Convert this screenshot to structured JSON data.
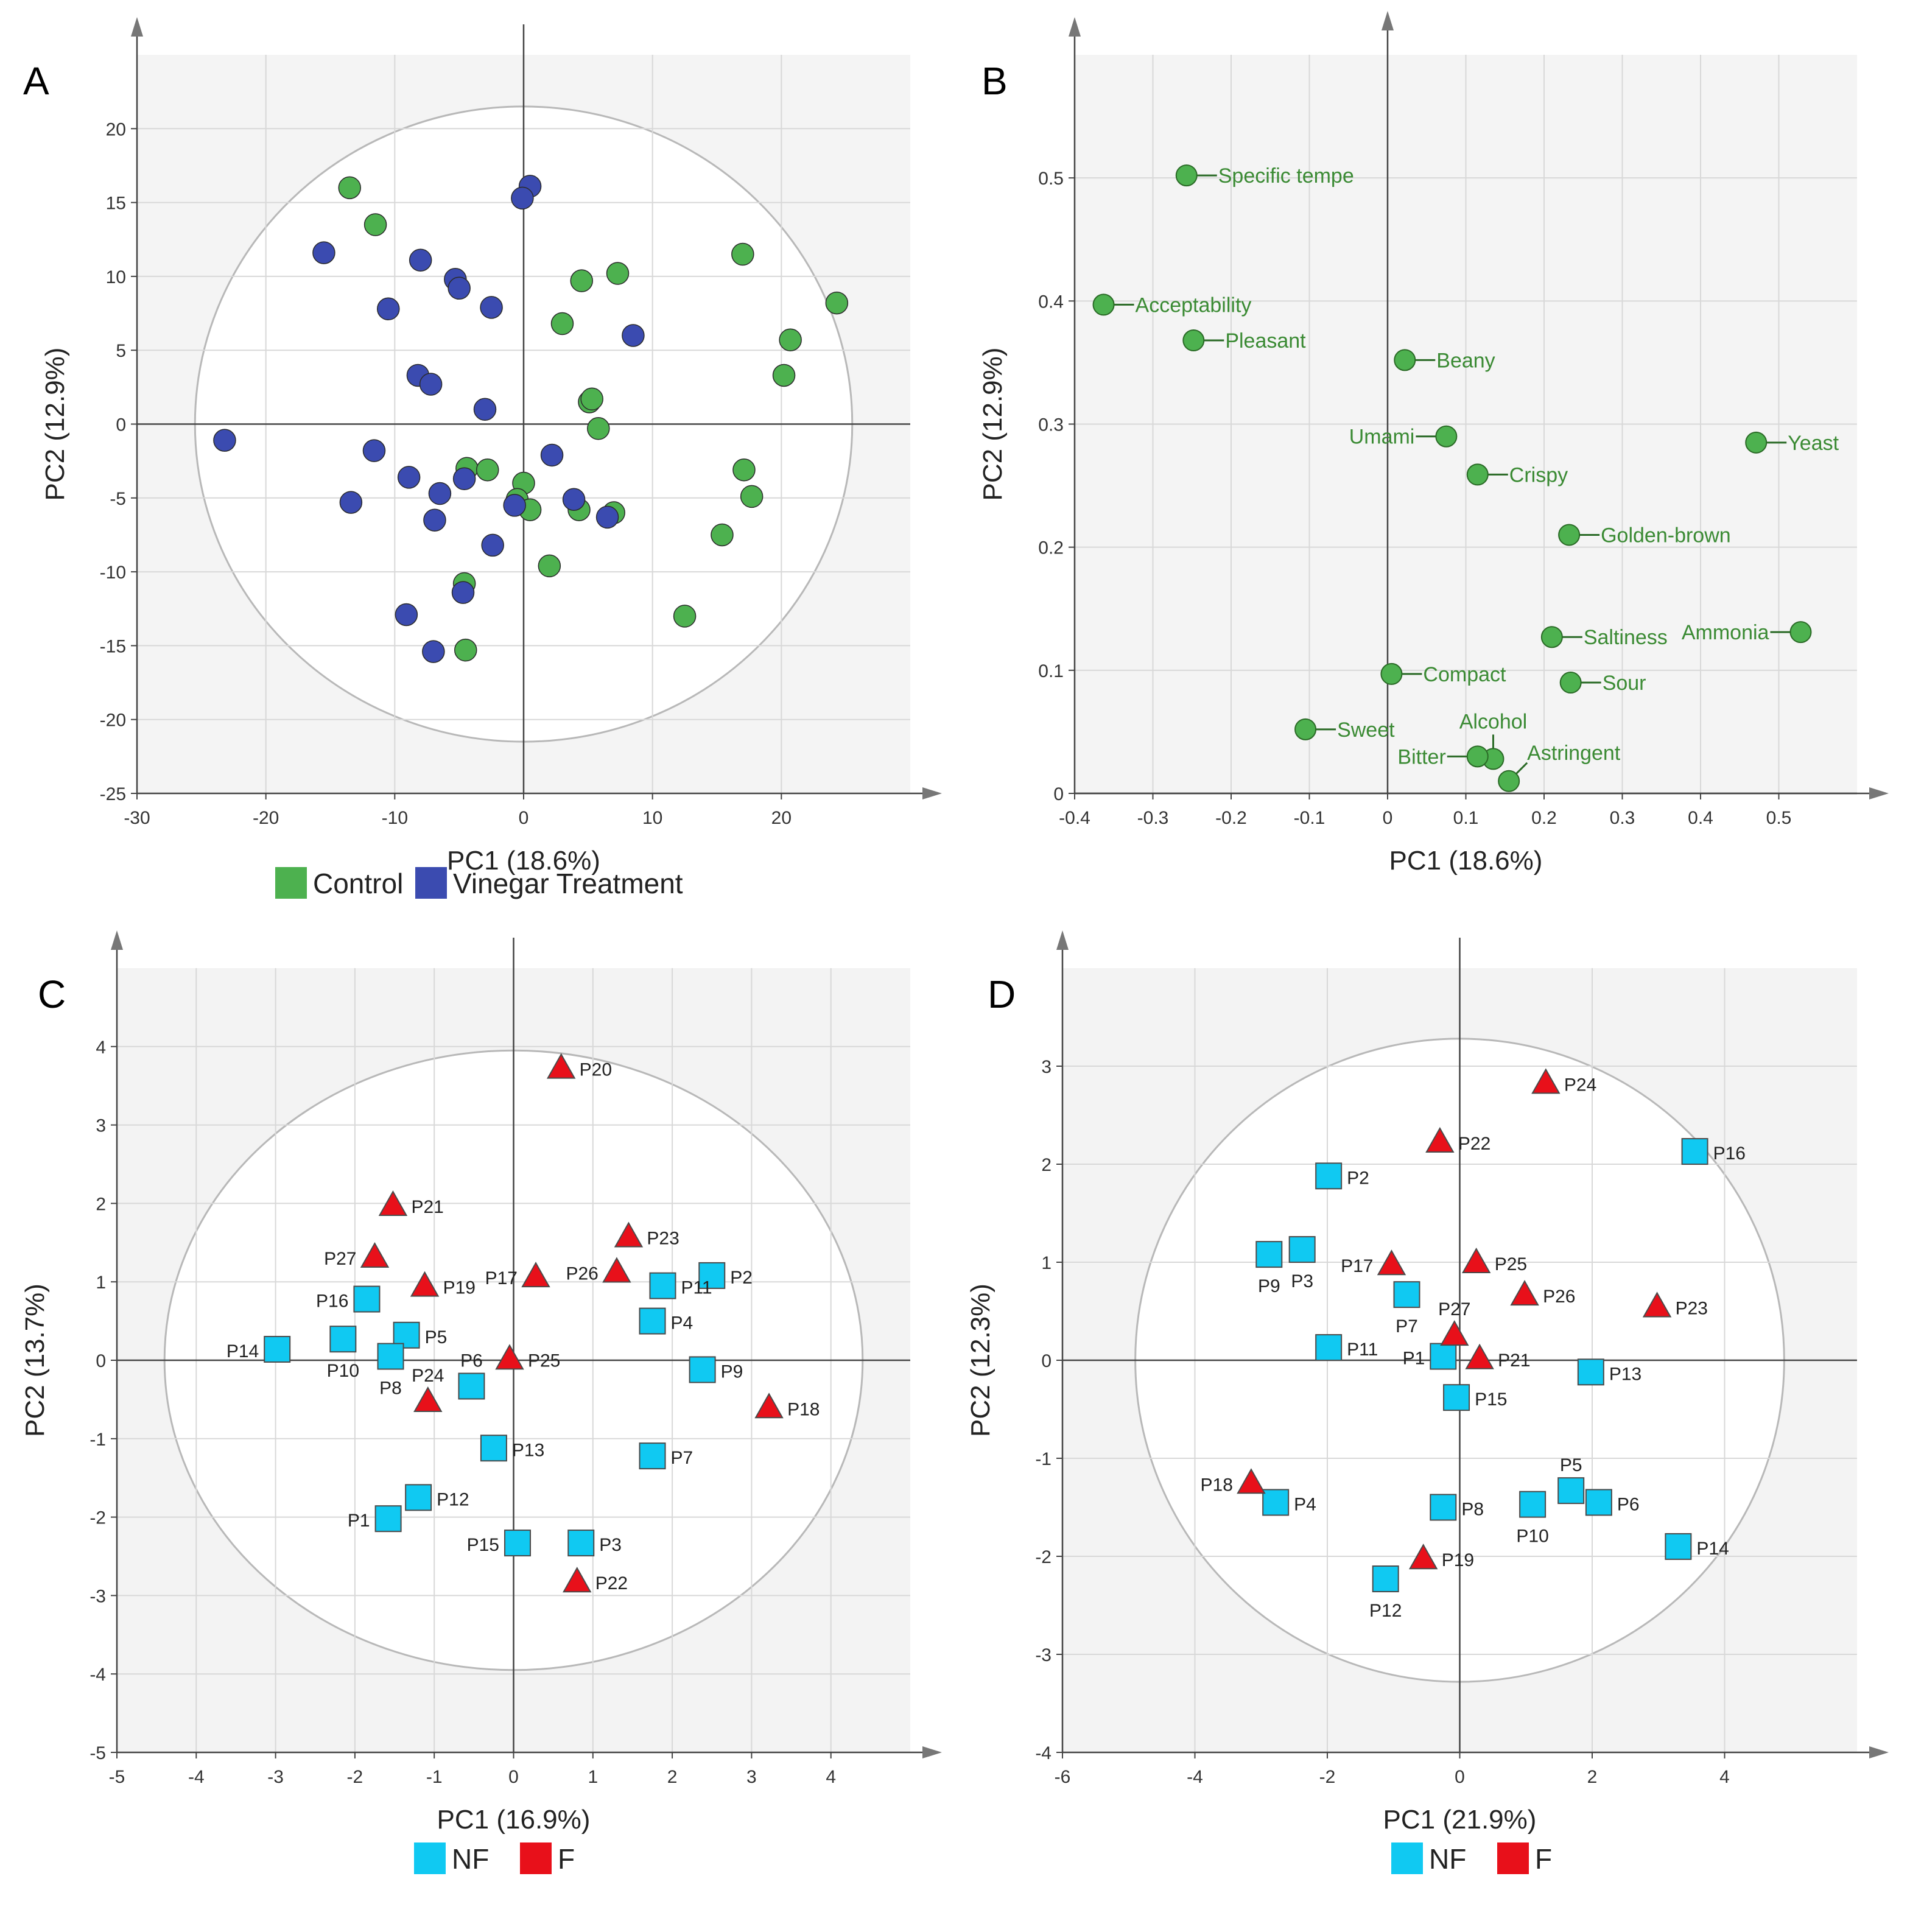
{
  "colors": {
    "control": "#4db14f",
    "vinegar": "#3b4bb0",
    "nf": "#10c9f2",
    "f": "#e8101a",
    "loading": "#4db14f"
  },
  "chart_data": [
    {
      "panel": "A",
      "type": "scatter",
      "xlabel": "PC1 (18.6%)",
      "ylabel": "PC2 (12.9%)",
      "xlim": [
        -30,
        30
      ],
      "ylim": [
        -25,
        25
      ],
      "xticks": [
        -30,
        -20,
        -10,
        0,
        10,
        20
      ],
      "yticks": [
        -25,
        -20,
        -15,
        -10,
        -5,
        0,
        5,
        10,
        15,
        20
      ],
      "ellipse": {
        "rx": 25.5,
        "ry": 21.5
      },
      "legend": [
        "Control",
        "Vinegar Treatment"
      ],
      "series": [
        {
          "name": "Control",
          "color_key": "control",
          "points": [
            [
              -13.5,
              16
            ],
            [
              -11.5,
              13.5
            ],
            [
              17,
              11.5
            ],
            [
              4.5,
              9.7
            ],
            [
              7.3,
              10.2
            ],
            [
              24.3,
              8.2
            ],
            [
              3,
              6.8
            ],
            [
              20.7,
              5.7
            ],
            [
              20.2,
              3.3
            ],
            [
              5.1,
              1.5
            ],
            [
              5.3,
              1.7
            ],
            [
              5.8,
              -0.3
            ],
            [
              -4.4,
              -3
            ],
            [
              -2.8,
              -3.1
            ],
            [
              0,
              -4
            ],
            [
              17.1,
              -3.1
            ],
            [
              -0.5,
              -5.1
            ],
            [
              0.5,
              -5.8
            ],
            [
              4.3,
              -5.8
            ],
            [
              7,
              -6
            ],
            [
              17.7,
              -4.9
            ],
            [
              15.4,
              -7.5
            ],
            [
              2,
              -9.6
            ],
            [
              -4.6,
              -10.8
            ],
            [
              12.5,
              -13
            ],
            [
              -4.5,
              -15.3
            ]
          ]
        },
        {
          "name": "Vinegar Treatment",
          "color_key": "vinegar",
          "points": [
            [
              0.5,
              16.1
            ],
            [
              -0.1,
              15.3
            ],
            [
              -15.5,
              11.6
            ],
            [
              -8,
              11.1
            ],
            [
              -5.3,
              9.8
            ],
            [
              -5,
              9.2
            ],
            [
              -10.5,
              7.8
            ],
            [
              -2.5,
              7.9
            ],
            [
              8.5,
              6
            ],
            [
              -8.2,
              3.3
            ],
            [
              -7.2,
              2.7
            ],
            [
              -3,
              1
            ],
            [
              -23.2,
              -1.1
            ],
            [
              -11.6,
              -1.8
            ],
            [
              2.2,
              -2.1
            ],
            [
              -8.9,
              -3.6
            ],
            [
              -4.6,
              -3.7
            ],
            [
              -6.5,
              -4.7
            ],
            [
              -13.4,
              -5.3
            ],
            [
              -0.7,
              -5.5
            ],
            [
              3.9,
              -5.1
            ],
            [
              6.5,
              -6.3
            ],
            [
              -6.9,
              -6.5
            ],
            [
              -2.4,
              -8.2
            ],
            [
              -4.7,
              -11.4
            ],
            [
              -9.1,
              -12.9
            ],
            [
              -7,
              -15.4
            ]
          ]
        }
      ]
    },
    {
      "panel": "B",
      "type": "scatter",
      "xlabel": "PC1 (18.6%)",
      "ylabel": "PC2 (12.9%)",
      "xlim": [
        -0.4,
        0.6
      ],
      "ylim": [
        0,
        0.6
      ],
      "xticks": [
        -0.4,
        -0.3,
        -0.2,
        -0.1,
        0,
        0.1,
        0.2,
        0.3,
        0.4,
        0.5
      ],
      "yticks": [
        0,
        0.1,
        0.2,
        0.3,
        0.4,
        0.5
      ],
      "points": [
        {
          "label": "Specific tempe",
          "x": -0.257,
          "y": 0.502,
          "side": "right"
        },
        {
          "label": "Acceptability",
          "x": -0.363,
          "y": 0.397,
          "side": "right"
        },
        {
          "label": "Pleasant",
          "x": -0.248,
          "y": 0.368,
          "side": "right"
        },
        {
          "label": "Beany",
          "x": 0.022,
          "y": 0.352,
          "side": "right"
        },
        {
          "label": "Umami",
          "x": 0.075,
          "y": 0.29,
          "side": "left"
        },
        {
          "label": "Yeast",
          "x": 0.471,
          "y": 0.285,
          "side": "right"
        },
        {
          "label": "Crispy",
          "x": 0.115,
          "y": 0.259,
          "side": "right"
        },
        {
          "label": "Golden-brown",
          "x": 0.232,
          "y": 0.21,
          "side": "right"
        },
        {
          "label": "Saltiness",
          "x": 0.21,
          "y": 0.127,
          "side": "right"
        },
        {
          "label": "Ammonia",
          "x": 0.528,
          "y": 0.131,
          "side": "left"
        },
        {
          "label": "Compact",
          "x": 0.005,
          "y": 0.097,
          "side": "right"
        },
        {
          "label": "Sour",
          "x": 0.234,
          "y": 0.09,
          "side": "right"
        },
        {
          "label": "Sweet",
          "x": -0.105,
          "y": 0.052,
          "side": "right"
        },
        {
          "label": "Alcohol",
          "x": 0.135,
          "y": 0.028,
          "side": "above"
        },
        {
          "label": "Bitter",
          "x": 0.115,
          "y": 0.03,
          "side": "left"
        },
        {
          "label": "Astringent",
          "x": 0.155,
          "y": 0.01,
          "side": "aboveright"
        }
      ]
    },
    {
      "panel": "C",
      "type": "scatter",
      "xlabel": "PC1 (16.9%)",
      "ylabel": "PC2 (13.7%)",
      "xlim": [
        -5,
        5
      ],
      "ylim": [
        -5,
        5
      ],
      "xticks": [
        -5,
        -4,
        -3,
        -2,
        -1,
        0,
        1,
        2,
        3,
        4
      ],
      "yticks": [
        -5,
        -4,
        -3,
        -2,
        -1,
        0,
        1,
        2,
        3,
        4
      ],
      "ellipse": {
        "rx": 4.4,
        "ry": 3.95
      },
      "legend": [
        "NF",
        "F"
      ],
      "series": [
        {
          "name": "NF",
          "marker": "square",
          "color_key": "nf",
          "points": [
            {
              "label": "P2",
              "x": 2.5,
              "y": 1.08,
              "side": "right"
            },
            {
              "label": "P11",
              "x": 1.88,
              "y": 0.95,
              "side": "right"
            },
            {
              "label": "P16",
              "x": -1.85,
              "y": 0.78,
              "side": "left"
            },
            {
              "label": "P4",
              "x": 1.75,
              "y": 0.5,
              "side": "right"
            },
            {
              "label": "P5",
              "x": -1.35,
              "y": 0.32,
              "side": "right"
            },
            {
              "label": "P10",
              "x": -2.15,
              "y": 0.27,
              "side": "below"
            },
            {
              "label": "P14",
              "x": -2.98,
              "y": 0.14,
              "side": "left"
            },
            {
              "label": "P8",
              "x": -1.55,
              "y": 0.05,
              "side": "below"
            },
            {
              "label": "P9",
              "x": 2.38,
              "y": -0.12,
              "side": "right"
            },
            {
              "label": "P6",
              "x": -0.53,
              "y": -0.33,
              "side": "above"
            },
            {
              "label": "P13",
              "x": -0.25,
              "y": -1.12,
              "side": "right"
            },
            {
              "label": "P7",
              "x": 1.75,
              "y": -1.22,
              "side": "right"
            },
            {
              "label": "P12",
              "x": -1.2,
              "y": -1.75,
              "side": "right"
            },
            {
              "label": "P1",
              "x": -1.58,
              "y": -2.02,
              "side": "left"
            },
            {
              "label": "P15",
              "x": 0.05,
              "y": -2.33,
              "side": "left"
            },
            {
              "label": "P3",
              "x": 0.85,
              "y": -2.33,
              "side": "right"
            }
          ]
        },
        {
          "name": "F",
          "marker": "triangle",
          "color_key": "f",
          "points": [
            {
              "label": "P20",
              "x": 0.6,
              "y": 3.73,
              "side": "right"
            },
            {
              "label": "P21",
              "x": -1.52,
              "y": 1.98,
              "side": "right"
            },
            {
              "label": "P23",
              "x": 1.45,
              "y": 1.58,
              "side": "right"
            },
            {
              "label": "P27",
              "x": -1.75,
              "y": 1.32,
              "side": "left"
            },
            {
              "label": "P26",
              "x": 1.3,
              "y": 1.13,
              "side": "left"
            },
            {
              "label": "P17",
              "x": 0.28,
              "y": 1.07,
              "side": "left"
            },
            {
              "label": "P19",
              "x": -1.12,
              "y": 0.95,
              "side": "right"
            },
            {
              "label": "P25",
              "x": -0.05,
              "y": 0.02,
              "side": "right"
            },
            {
              "label": "P24",
              "x": -1.08,
              "y": -0.52,
              "side": "above"
            },
            {
              "label": "P18",
              "x": 3.22,
              "y": -0.6,
              "side": "right"
            },
            {
              "label": "P22",
              "x": 0.8,
              "y": -2.82,
              "side": "right"
            }
          ]
        }
      ]
    },
    {
      "panel": "D",
      "type": "scatter",
      "xlabel": "PC1 (21.9%)",
      "ylabel": "PC2 (12.3%)",
      "xlim": [
        -6,
        6
      ],
      "ylim": [
        -4,
        4
      ],
      "xticks": [
        -6,
        -4,
        -2,
        0,
        2,
        4
      ],
      "yticks": [
        -4,
        -3,
        -2,
        -1,
        0,
        1,
        2,
        3
      ],
      "ellipse": {
        "rx": 4.9,
        "ry": 3.28
      },
      "legend": [
        "NF",
        "F"
      ],
      "series": [
        {
          "name": "NF",
          "marker": "square",
          "color_key": "nf",
          "points": [
            {
              "label": "P16",
              "x": 3.55,
              "y": 2.13,
              "side": "right"
            },
            {
              "label": "P2",
              "x": -1.98,
              "y": 1.88,
              "side": "right"
            },
            {
              "label": "P3",
              "x": -2.38,
              "y": 1.13,
              "side": "below"
            },
            {
              "label": "P9",
              "x": -2.88,
              "y": 1.08,
              "side": "below"
            },
            {
              "label": "P7",
              "x": -0.8,
              "y": 0.67,
              "side": "below"
            },
            {
              "label": "P11",
              "x": -1.98,
              "y": 0.13,
              "side": "right"
            },
            {
              "label": "P1",
              "x": -0.25,
              "y": 0.04,
              "side": "left"
            },
            {
              "label": "P13",
              "x": 1.98,
              "y": -0.12,
              "side": "right"
            },
            {
              "label": "P15",
              "x": -0.05,
              "y": -0.38,
              "side": "right"
            },
            {
              "label": "P5",
              "x": 1.68,
              "y": -1.33,
              "side": "above"
            },
            {
              "label": "P4",
              "x": -2.78,
              "y": -1.45,
              "side": "right"
            },
            {
              "label": "P10",
              "x": 1.1,
              "y": -1.47,
              "side": "below"
            },
            {
              "label": "P6",
              "x": 2.1,
              "y": -1.45,
              "side": "right"
            },
            {
              "label": "P8",
              "x": -0.25,
              "y": -1.5,
              "side": "right"
            },
            {
              "label": "P14",
              "x": 3.3,
              "y": -1.9,
              "side": "right"
            },
            {
              "label": "P12",
              "x": -1.12,
              "y": -2.23,
              "side": "below"
            }
          ]
        },
        {
          "name": "F",
          "marker": "triangle",
          "color_key": "f",
          "points": [
            {
              "label": "P24",
              "x": 1.3,
              "y": 2.83,
              "side": "right"
            },
            {
              "label": "P22",
              "x": -0.3,
              "y": 2.23,
              "side": "right"
            },
            {
              "label": "P17",
              "x": -1.03,
              "y": 0.98,
              "side": "left"
            },
            {
              "label": "P25",
              "x": 0.25,
              "y": 1.0,
              "side": "right"
            },
            {
              "label": "P26",
              "x": 0.98,
              "y": 0.67,
              "side": "right"
            },
            {
              "label": "P23",
              "x": 2.98,
              "y": 0.55,
              "side": "right"
            },
            {
              "label": "P27",
              "x": -0.08,
              "y": 0.26,
              "side": "above"
            },
            {
              "label": "P21",
              "x": 0.3,
              "y": 0.02,
              "side": "right"
            },
            {
              "label": "P18",
              "x": -3.15,
              "y": -1.25,
              "side": "left"
            },
            {
              "label": "P19",
              "x": -0.55,
              "y": -2.02,
              "side": "right"
            }
          ]
        }
      ]
    }
  ]
}
